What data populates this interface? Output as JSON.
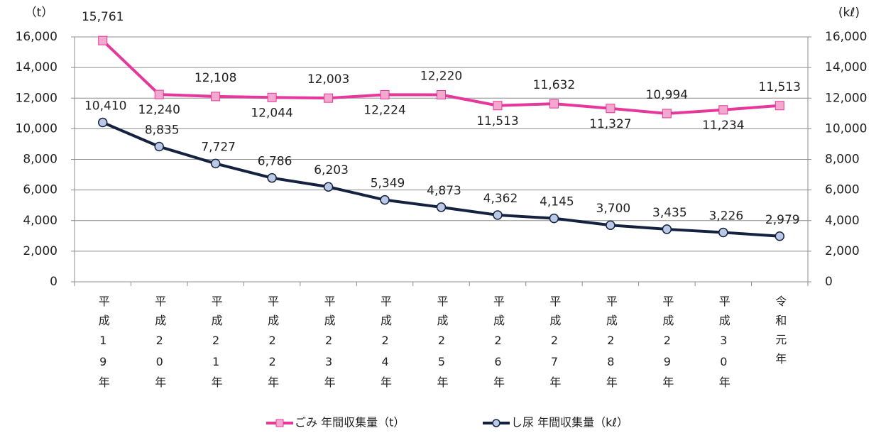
{
  "chart_data": {
    "type": "line",
    "y_axis_label": "（t）",
    "y2_axis_label": "(kℓ)",
    "categories": [
      "平成19年",
      "平成20年",
      "平成21年",
      "平成22年",
      "平成23年",
      "平成24年",
      "平成25年",
      "平成26年",
      "平成27年",
      "平成28年",
      "平成29年",
      "平成30年",
      "令和元年"
    ],
    "series": [
      {
        "name": "ごみ 年間収集量（t）",
        "color": "#e6379a",
        "marker": "square",
        "marker_color": "#f3a8cf",
        "axis": "y",
        "values": [
          15761,
          12240,
          12108,
          12044,
          12003,
          12224,
          12220,
          11513,
          11632,
          11327,
          10994,
          11234,
          11513
        ],
        "value_labels": [
          "15,761",
          "12,240",
          "12,108",
          "12,044",
          "12,003",
          "12,224",
          "12,220",
          "11,513",
          "11,632",
          "11,327",
          "10,994",
          "11,234",
          "11,513"
        ]
      },
      {
        "name": "し尿 年間収集量（kℓ）",
        "color": "#15223f",
        "marker": "circle",
        "marker_color": "#b9c9e6",
        "axis": "y2",
        "values": [
          10410,
          8835,
          7727,
          6786,
          6203,
          5349,
          4873,
          4362,
          4145,
          3700,
          3435,
          3226,
          2979
        ],
        "value_labels": [
          "10,410",
          "8,835",
          "7,727",
          "6,786",
          "6,203",
          "5,349",
          "4,873",
          "4,362",
          "4,145",
          "3,700",
          "3,435",
          "3,226",
          "2,979"
        ]
      }
    ],
    "ylim": [
      0,
      16000
    ],
    "yticks": [
      0,
      {
        "value": 2000,
        "label": "2,000"
      },
      {
        "value": 4000,
        "label": "4,000"
      },
      {
        "value": 6000,
        "label": "6,000"
      },
      {
        "value": 8000,
        "label": "8,000"
      },
      {
        "value": 10000,
        "label": "10,000"
      },
      {
        "value": 12000,
        "label": "12,000"
      },
      {
        "value": 14000,
        "label": "14,000"
      },
      {
        "value": 16000,
        "label": "16,000"
      }
    ],
    "y2lim": [
      0,
      16000
    ],
    "y2ticks": [
      0,
      {
        "value": 2000,
        "label": "2,000"
      },
      {
        "value": 4000,
        "label": "4,000"
      },
      {
        "value": 6000,
        "label": "6,000"
      },
      {
        "value": 8000,
        "label": "8,000"
      },
      {
        "value": 10000,
        "label": "10,000"
      },
      {
        "value": 12000,
        "label": "12,000"
      },
      {
        "value": 14000,
        "label": "14,000"
      },
      {
        "value": 16000,
        "label": "16,000"
      }
    ],
    "grid": true,
    "legend": "bottom"
  }
}
